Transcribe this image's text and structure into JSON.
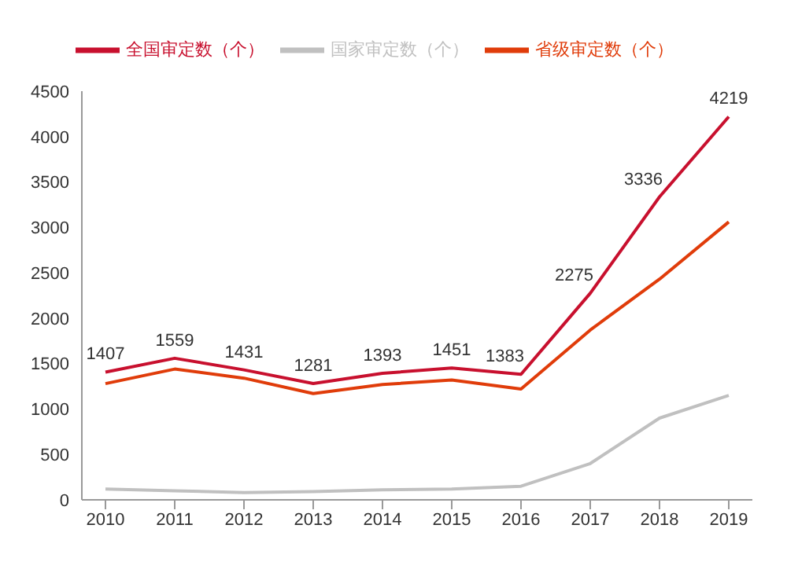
{
  "chart_data": {
    "type": "line",
    "categories": [
      "2010",
      "2011",
      "2012",
      "2013",
      "2014",
      "2015",
      "2016",
      "2017",
      "2018",
      "2019"
    ],
    "series": [
      {
        "name": "全国审定数（个）",
        "color": "#c8102e",
        "values": [
          1407,
          1559,
          1431,
          1281,
          1393,
          1451,
          1383,
          2275,
          3336,
          4219
        ],
        "value_labels": [
          "1407",
          "1559",
          "1431",
          "1281",
          "1393",
          "1451",
          "1383",
          "2275",
          "3336",
          "4219"
        ]
      },
      {
        "name": "国家审定数（个）",
        "color": "#c0c0c0",
        "values": [
          120,
          100,
          80,
          90,
          110,
          120,
          150,
          400,
          900,
          1150
        ]
      },
      {
        "name": "省级审定数（个）",
        "color": "#e03c0a",
        "values": [
          1280,
          1440,
          1340,
          1170,
          1270,
          1320,
          1220,
          1870,
          2430,
          3060
        ]
      }
    ],
    "ylim": [
      0,
      4500
    ],
    "yticks": [
      0,
      500,
      1000,
      1500,
      2000,
      2500,
      3000,
      3500,
      4000,
      4500
    ],
    "grid": false,
    "legend": "top",
    "marker": "none",
    "line_style": "solid"
  }
}
